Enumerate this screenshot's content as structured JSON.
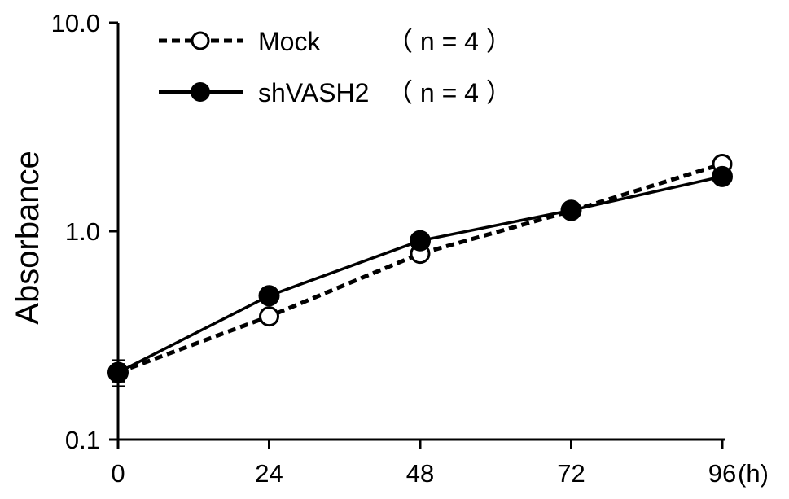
{
  "chart_data": {
    "type": "line",
    "ylabel": "Absorbance",
    "x_unit": "(h)",
    "yscale": "log",
    "ylim": [
      0.1,
      10.0
    ],
    "xlim": [
      0,
      96
    ],
    "x_ticks": [
      0,
      24,
      48,
      72,
      96
    ],
    "x_tick_labels": [
      "0",
      "24",
      "48",
      "72",
      "96"
    ],
    "y_ticks": [
      0.1,
      1.0,
      10.0
    ],
    "y_tick_labels": [
      "0.1",
      "1.0",
      "10.0"
    ],
    "grid": false,
    "legend_position": "top-left",
    "x": [
      0,
      24,
      48,
      72,
      96
    ],
    "series": [
      {
        "name": "Mock",
        "legend_n": "（ n = 4 ）",
        "line_style": "dashed",
        "marker": "open-circle",
        "values": [
          0.21,
          0.39,
          0.78,
          1.25,
          2.1
        ],
        "error": [
          0.02,
          0.01,
          0.02,
          0.03,
          0.1
        ]
      },
      {
        "name": "shVASH2",
        "legend_n": "（ n = 4 ）",
        "line_style": "solid",
        "marker": "filled-circle",
        "values": [
          0.21,
          0.49,
          0.9,
          1.26,
          1.83
        ],
        "error": [
          0.03,
          0.02,
          0.02,
          0.03,
          0.08
        ]
      }
    ],
    "colors": {
      "line": "#000000",
      "background": "#ffffff"
    }
  }
}
